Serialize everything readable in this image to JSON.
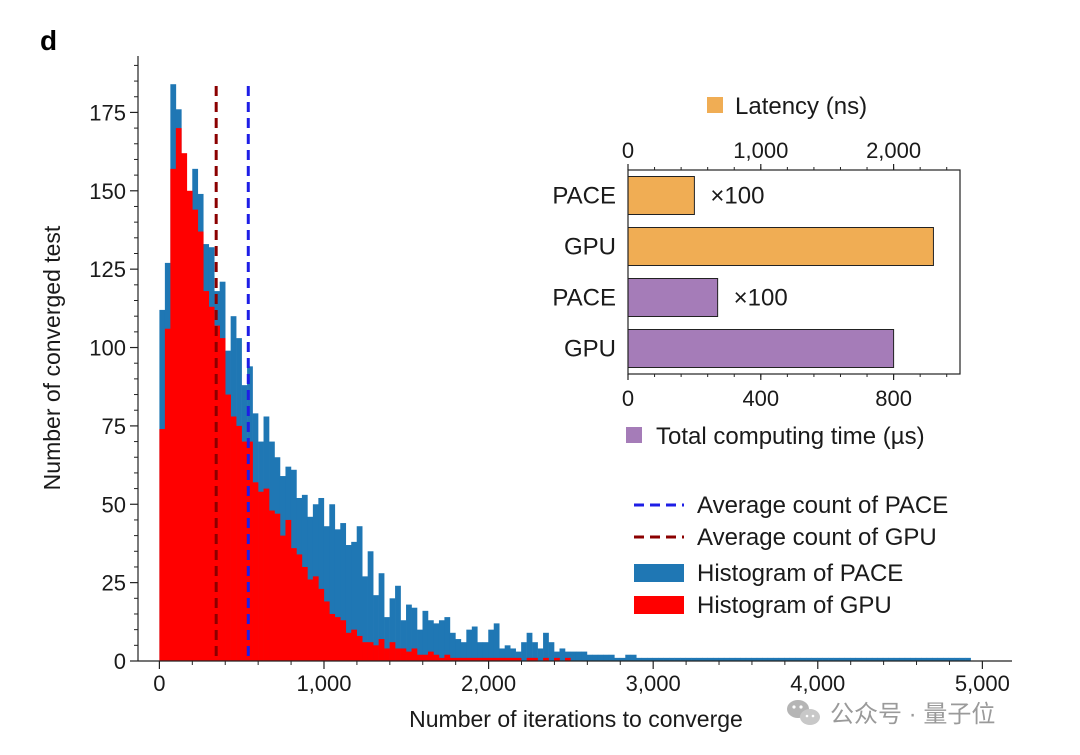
{
  "panel_label": "d",
  "watermark": "公众号 · 量子位",
  "chart_data": [
    {
      "type": "bar",
      "subtype": "histogram",
      "xlabel": "Number of iterations to converge",
      "ylabel": "Number of converged test",
      "xlim": [
        -130,
        5180
      ],
      "ylim": [
        0,
        193
      ],
      "xticks": [
        0,
        1000,
        2000,
        3000,
        4000,
        5000
      ],
      "xtick_labels": [
        "0",
        "1,000",
        "2,000",
        "3,000",
        "4,000",
        "5,000"
      ],
      "yticks": [
        0,
        25,
        50,
        75,
        100,
        125,
        150,
        175
      ],
      "ytick_labels": [
        "0",
        "25",
        "50",
        "75",
        "100",
        "125",
        "150",
        "175"
      ],
      "bin_width": 33.3,
      "series": [
        {
          "name": "Histogram of PACE",
          "color": "#1f77b4",
          "bin_start": 0,
          "values": [
            112,
            127,
            184,
            176,
            147,
            143,
            157,
            149,
            133,
            132,
            118,
            121,
            99,
            110,
            103,
            88,
            94,
            79,
            70,
            78,
            70,
            65,
            59,
            62,
            61,
            52,
            53,
            46,
            50,
            52,
            43,
            50,
            42,
            44,
            37,
            38,
            43,
            27,
            35,
            21,
            28,
            14,
            20,
            24,
            13,
            18,
            17,
            10,
            16,
            13,
            12,
            13,
            14,
            9,
            7,
            6,
            10,
            11,
            6,
            6,
            10,
            12,
            4,
            5,
            4,
            3,
            6,
            9,
            6,
            4,
            9,
            6,
            3,
            4,
            3,
            3,
            3,
            3,
            2,
            2,
            2,
            2,
            2,
            1,
            1,
            2,
            2,
            1,
            1,
            1,
            1,
            1,
            1,
            1,
            1,
            1,
            1,
            1,
            1,
            1,
            1,
            1,
            1,
            1,
            1,
            1,
            1,
            1,
            1,
            1,
            1,
            1,
            1,
            1,
            1,
            1,
            1,
            1,
            1,
            1,
            1,
            1,
            1,
            1,
            1,
            1,
            1,
            1,
            1,
            1,
            1,
            1,
            1,
            1,
            1,
            1,
            1,
            1,
            1,
            1,
            1,
            1,
            1,
            1,
            1,
            1,
            1,
            1
          ]
        },
        {
          "name": "Histogram of GPU",
          "color": "#ff0000",
          "bin_start": 0,
          "values": [
            74,
            106,
            157,
            170,
            162,
            150,
            144,
            137,
            118,
            113,
            107,
            103,
            85,
            78,
            75,
            70,
            70,
            57,
            54,
            55,
            48,
            47,
            40,
            45,
            36,
            34,
            30,
            26,
            27,
            23,
            19,
            15,
            14,
            13,
            9,
            10,
            8,
            6,
            6,
            5,
            7,
            4,
            6,
            4,
            4,
            3,
            4,
            2,
            2,
            3,
            2,
            1,
            2,
            1,
            1,
            1,
            1,
            1,
            1,
            1,
            1,
            1,
            1,
            1,
            1,
            1,
            0,
            1,
            1,
            0,
            1,
            0,
            1,
            0,
            1
          ]
        }
      ],
      "reference_lines": [
        {
          "name": "Average count of PACE",
          "x": 540,
          "color": "#1e1ee6",
          "style": "dashed"
        },
        {
          "name": "Average count of GPU",
          "x": 345,
          "color": "#8b0000",
          "style": "dashed"
        }
      ],
      "legend": {
        "placement": "center-right",
        "entries": [
          "Average count of PACE",
          "Average count of GPU",
          "Histogram of PACE",
          "Histogram of GPU"
        ]
      }
    },
    {
      "type": "bar",
      "subtype": "horizontal-inset",
      "categories": [
        "PACE",
        "GPU",
        "PACE",
        "GPU"
      ],
      "top_axis": {
        "label": "Latency (ns)",
        "color": "#f0ad54",
        "lim": [
          0,
          2500
        ],
        "ticks": [
          0,
          1000,
          2000
        ],
        "tick_labels": [
          "0",
          "1,000",
          "2,000"
        ],
        "bars": [
          {
            "category": "PACE",
            "value": 500,
            "annotation": "×100"
          },
          {
            "category": "GPU",
            "value": 2300,
            "annotation": ""
          }
        ]
      },
      "bottom_axis": {
        "label": "Total computing time (µs)",
        "color": "#a57cb8",
        "lim": [
          0,
          1000
        ],
        "ticks": [
          0,
          400,
          800
        ],
        "tick_labels": [
          "0",
          "400",
          "800"
        ],
        "bars": [
          {
            "category": "PACE",
            "value": 270,
            "annotation": "×100"
          },
          {
            "category": "GPU",
            "value": 800,
            "annotation": ""
          }
        ]
      }
    }
  ]
}
